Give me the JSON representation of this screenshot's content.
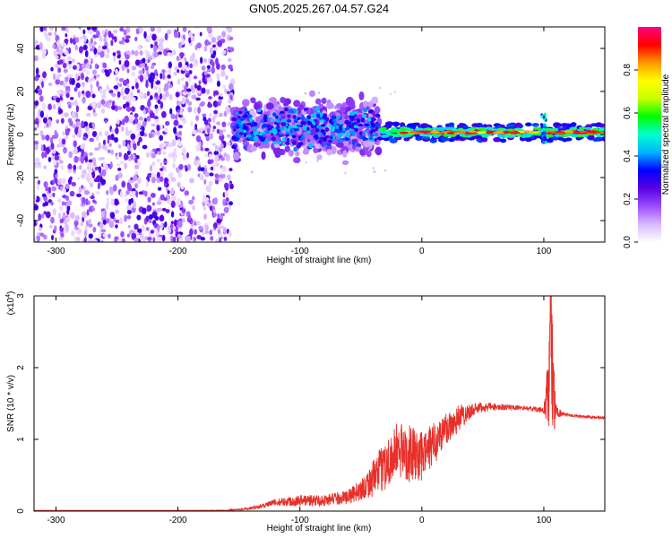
{
  "title": "GN05.2025.267.04.57.G24",
  "chart_data": [
    {
      "type": "heatmap",
      "xlabel": "Height of straight line (km)",
      "ylabel": "Frequency (Hz)",
      "xlim": [
        -318,
        150
      ],
      "ylim": [
        -50,
        50
      ],
      "xticks": [
        -300,
        -200,
        -100,
        0,
        100
      ],
      "yticks": [
        -40,
        -20,
        0,
        20,
        40
      ],
      "colorbar": {
        "label": "Normalized spectral amplitude",
        "range": [
          0,
          1
        ],
        "ticks": [
          0.0,
          0.2,
          0.4,
          0.6,
          0.8
        ],
        "colors": [
          "#ffffff",
          "#d9b8ff",
          "#9b4dff",
          "#5a00e0",
          "#0000ff",
          "#00b4ff",
          "#00ffd0",
          "#00ff00",
          "#c8ff00",
          "#ffff00",
          "#ff9900",
          "#ff0000",
          "#ff0080"
        ]
      },
      "regions": [
        {
          "x_from": -318,
          "x_to": -155,
          "frequency_span": [
            -50,
            50
          ],
          "amplitude": "0.05-0.3 scattered noise"
        },
        {
          "x_from": -155,
          "x_to": -35,
          "frequency_center": 3,
          "frequency_spread": 10,
          "amplitude": "0.2-0.45"
        },
        {
          "x_from": -35,
          "x_to": 150,
          "frequency_center": 1,
          "frequency_spread": 2,
          "amplitude": "0.6-1.0 narrow line"
        }
      ],
      "features": [
        {
          "x": 100,
          "frequency_span": [
            -4,
            10
          ],
          "note": "vertical streak"
        }
      ]
    },
    {
      "type": "line",
      "xlabel": "Height of straight line (km)",
      "ylabel": "SNR (10 * v/v)",
      "y_multiplier": "(x10",
      "y_multiplier_exp": "4",
      "xlim": [
        -318,
        150
      ],
      "ylim": [
        0,
        3
      ],
      "xticks": [
        -300,
        -200,
        -100,
        0,
        100
      ],
      "yticks": [
        0,
        1,
        2,
        3
      ],
      "color": "#e8302a",
      "x": [
        -318,
        -250,
        -200,
        -160,
        -140,
        -120,
        -100,
        -80,
        -60,
        -50,
        -40,
        -30,
        -20,
        -10,
        0,
        10,
        20,
        30,
        40,
        50,
        60,
        70,
        80,
        90,
        100,
        104,
        106,
        108,
        110,
        115,
        120,
        130,
        140,
        150
      ],
      "y": [
        0.01,
        0.01,
        0.01,
        0.01,
        0.04,
        0.12,
        0.15,
        0.15,
        0.2,
        0.3,
        0.45,
        0.65,
        0.85,
        0.8,
        0.75,
        0.95,
        1.15,
        1.3,
        1.4,
        1.45,
        1.45,
        1.45,
        1.44,
        1.43,
        1.4,
        1.7,
        2.6,
        1.5,
        1.4,
        1.35,
        1.34,
        1.32,
        1.31,
        1.3
      ],
      "noise_amp": [
        0.0,
        0.0,
        0.0,
        0.005,
        0.02,
        0.05,
        0.08,
        0.08,
        0.1,
        0.15,
        0.25,
        0.35,
        0.4,
        0.4,
        0.35,
        0.3,
        0.25,
        0.2,
        0.1,
        0.07,
        0.05,
        0.04,
        0.03,
        0.03,
        0.05,
        0.6,
        1.1,
        0.6,
        0.1,
        0.03,
        0.02,
        0.02,
        0.02,
        0.02
      ]
    }
  ]
}
